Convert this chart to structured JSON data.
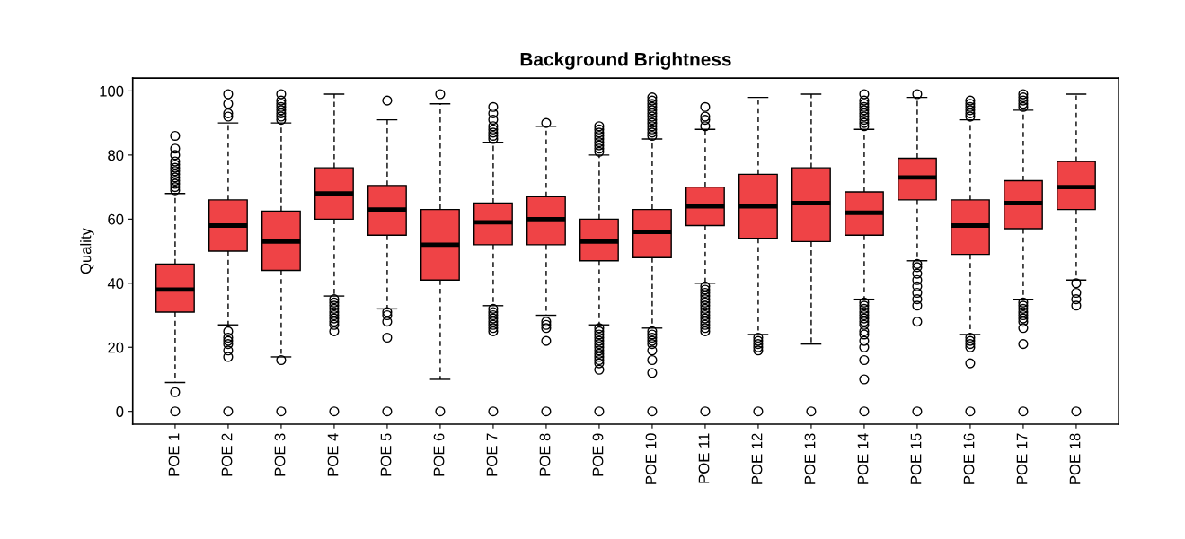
{
  "chart_data": {
    "type": "box",
    "title": "Background Brightness",
    "ylabel": "Quality",
    "categories": [
      "POE 1",
      "POE 2",
      "POE 3",
      "POE 4",
      "POE 5",
      "POE 6",
      "POE 7",
      "POE 8",
      "POE 9",
      "POE 10",
      "POE 11",
      "POE 12",
      "POE 13",
      "POE 14",
      "POE 15",
      "POE 16",
      "POE 17",
      "POE 18"
    ],
    "color": "#ef4346",
    "ylim": [
      -4,
      104
    ],
    "yticks": [
      0,
      20,
      40,
      60,
      80,
      100
    ],
    "grid": false,
    "boxes": [
      {
        "low": 9,
        "q1": 31,
        "median": 38,
        "q3": 46,
        "high": 68,
        "outliers": [
          0,
          6,
          69,
          70,
          71,
          72,
          73,
          74,
          75,
          76,
          77,
          78,
          80,
          82,
          86
        ]
      },
      {
        "low": 27,
        "q1": 50,
        "median": 58,
        "q3": 66,
        "high": 90,
        "outliers": [
          0,
          17,
          19,
          21,
          22,
          23,
          25,
          92,
          93,
          96,
          99
        ]
      },
      {
        "low": 17,
        "q1": 44,
        "median": 53,
        "q3": 62.5,
        "high": 90,
        "outliers": [
          0,
          16,
          91,
          92,
          93,
          94,
          95,
          96,
          97,
          99
        ]
      },
      {
        "low": 36,
        "q1": 60,
        "median": 68,
        "q3": 76,
        "high": 99,
        "outliers": [
          0,
          25,
          27,
          28,
          29,
          30,
          31,
          32,
          33,
          34,
          35
        ]
      },
      {
        "low": 32,
        "q1": 55,
        "median": 63,
        "q3": 70.5,
        "high": 91,
        "outliers": [
          0,
          23,
          28,
          30,
          31,
          97
        ]
      },
      {
        "low": 10,
        "q1": 41,
        "median": 52,
        "q3": 63,
        "high": 96,
        "outliers": [
          0,
          99
        ]
      },
      {
        "low": 33,
        "q1": 52,
        "median": 59,
        "q3": 65,
        "high": 84,
        "outliers": [
          0,
          25,
          26,
          27,
          28,
          29,
          30,
          31,
          32,
          85,
          86,
          87,
          88,
          89,
          91,
          93,
          95
        ]
      },
      {
        "low": 30,
        "q1": 52,
        "median": 60,
        "q3": 67,
        "high": 89,
        "outliers": [
          0,
          22,
          26,
          27,
          28,
          90
        ]
      },
      {
        "low": 27,
        "q1": 47,
        "median": 53,
        "q3": 60,
        "high": 80,
        "outliers": [
          0,
          13,
          15,
          16,
          17,
          18,
          19,
          20,
          21,
          22,
          23,
          24,
          25,
          26,
          81,
          82,
          83,
          84,
          85,
          86,
          87,
          88,
          89
        ]
      },
      {
        "low": 26,
        "q1": 48,
        "median": 56,
        "q3": 63,
        "high": 85,
        "outliers": [
          0,
          12,
          16,
          19,
          21,
          22,
          23,
          24,
          25,
          86,
          87,
          88,
          89,
          90,
          91,
          92,
          93,
          94,
          95,
          96,
          97,
          98
        ]
      },
      {
        "low": 40,
        "q1": 58,
        "median": 64,
        "q3": 70,
        "high": 88,
        "outliers": [
          0,
          25,
          26,
          27,
          28,
          29,
          30,
          31,
          32,
          33,
          34,
          35,
          36,
          37,
          38,
          39,
          89,
          91,
          92,
          95
        ]
      },
      {
        "low": 24,
        "q1": 54,
        "median": 64,
        "q3": 74,
        "high": 98,
        "outliers": [
          0,
          19,
          20,
          21,
          22,
          23
        ]
      },
      {
        "low": 21,
        "q1": 53,
        "median": 65,
        "q3": 76,
        "high": 99,
        "outliers": [
          0
        ]
      },
      {
        "low": 35,
        "q1": 55,
        "median": 62,
        "q3": 68.5,
        "high": 88,
        "outliers": [
          0,
          10,
          16,
          20,
          22,
          24,
          25,
          27,
          28,
          29,
          30,
          31,
          32,
          33,
          34,
          89,
          90,
          91,
          92,
          93,
          94,
          95,
          96,
          97,
          99
        ]
      },
      {
        "low": 47,
        "q1": 66,
        "median": 73,
        "q3": 79,
        "high": 98,
        "outliers": [
          0,
          28,
          33,
          35,
          37,
          39,
          41,
          43,
          45,
          46,
          99
        ]
      },
      {
        "low": 24,
        "q1": 49,
        "median": 58,
        "q3": 66,
        "high": 91,
        "outliers": [
          0,
          15,
          20,
          21,
          22,
          23,
          92,
          93,
          94,
          95,
          96,
          97
        ]
      },
      {
        "low": 35,
        "q1": 57,
        "median": 65,
        "q3": 72,
        "high": 94,
        "outliers": [
          0,
          21,
          26,
          28,
          29,
          30,
          31,
          32,
          33,
          34,
          95,
          96,
          97,
          98,
          99
        ]
      },
      {
        "low": 41,
        "q1": 63,
        "median": 70,
        "q3": 78,
        "high": 99,
        "outliers": [
          0,
          33,
          35,
          37,
          40
        ]
      }
    ]
  }
}
